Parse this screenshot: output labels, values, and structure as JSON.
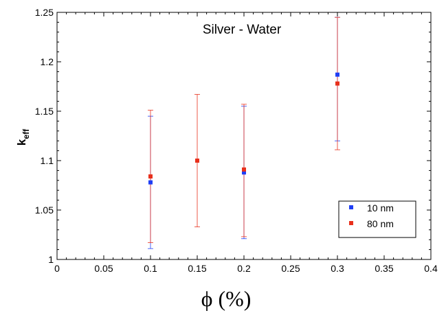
{
  "chart_data": {
    "type": "scatter",
    "title": "Silver - Water",
    "xlabel": "ϕ (%)",
    "ylabel_main": "k",
    "ylabel_sub": "eff",
    "xlim": [
      0,
      0.4
    ],
    "ylim": [
      1,
      1.25
    ],
    "x_ticks": [
      "0",
      "0.05",
      "0.1",
      "0.15",
      "0.2",
      "0.25",
      "0.3",
      "0.35",
      "0.4"
    ],
    "y_ticks": [
      "1",
      "1.05",
      "1.1",
      "1.15",
      "1.2",
      "1.25"
    ],
    "grid": false,
    "legend_position": "bottom-right",
    "series": [
      {
        "name": "10 nm",
        "color": "#1f3ff5",
        "points": [
          {
            "x": 0.1,
            "y": 1.078,
            "lo": 1.011,
            "hi": 1.145
          },
          {
            "x": 0.2,
            "y": 1.088,
            "lo": 1.021,
            "hi": 1.155
          },
          {
            "x": 0.3,
            "y": 1.187,
            "lo": 1.12,
            "hi": 1.245
          }
        ]
      },
      {
        "name": "80 nm",
        "color": "#e8301c",
        "points": [
          {
            "x": 0.1,
            "y": 1.084,
            "lo": 1.017,
            "hi": 1.151
          },
          {
            "x": 0.15,
            "y": 1.1,
            "lo": 1.033,
            "hi": 1.167
          },
          {
            "x": 0.2,
            "y": 1.091,
            "lo": 1.023,
            "hi": 1.157
          },
          {
            "x": 0.3,
            "y": 1.178,
            "lo": 1.111,
            "hi": 1.245
          }
        ]
      }
    ]
  }
}
